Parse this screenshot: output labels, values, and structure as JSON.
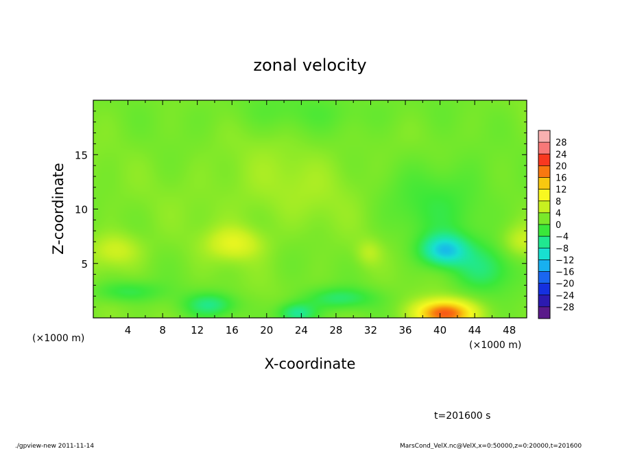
{
  "chart_data": {
    "type": "heatmap",
    "title": "zonal velocity",
    "xlabel": "X-coordinate",
    "ylabel": "Z-coordinate",
    "x_unit_label_left": "(×1000 m)",
    "x_unit_label_right": "(×1000 m)",
    "xlim": [
      0,
      50
    ],
    "ylim": [
      0,
      20
    ],
    "x_ticks": [
      4,
      8,
      12,
      16,
      20,
      24,
      28,
      32,
      36,
      40,
      44,
      48
    ],
    "x_tick_labels": [
      "4",
      "8",
      "12",
      "16",
      "20",
      "24",
      "28",
      "32",
      "36",
      "40",
      "44",
      "48"
    ],
    "y_ticks": [
      5,
      10,
      15
    ],
    "y_tick_labels": [
      "5",
      "10",
      "15"
    ],
    "colorbar": {
      "levels": [
        -28,
        -24,
        -20,
        -16,
        -12,
        -8,
        -4,
        0,
        4,
        8,
        12,
        16,
        20,
        24,
        28
      ],
      "labels": [
        "28",
        "24",
        "20",
        "16",
        "12",
        "8",
        "4",
        "0",
        "−4",
        "−8",
        "−12",
        "−16",
        "−20",
        "−24",
        "−28"
      ],
      "colors": [
        "#5a1a8a",
        "#2c1ab0",
        "#1530e0",
        "#1a66f0",
        "#18b0f0",
        "#18e0d0",
        "#20e890",
        "#3ae83a",
        "#7ae82a",
        "#c8f020",
        "#f8f820",
        "#f8c810",
        "#f87810",
        "#f83820",
        "#f87878",
        "#f8b0b0"
      ],
      "range": [
        -32,
        32
      ]
    },
    "field": {
      "background_value": 2,
      "features": [
        {
          "x": 40.5,
          "z": 6.2,
          "amp": -13,
          "sx": 2.6,
          "sz": 1.4
        },
        {
          "x": 40.5,
          "z": 0.4,
          "amp": 18,
          "sx": 3.2,
          "sz": 1.2
        },
        {
          "x": 16.3,
          "z": 6.8,
          "amp": 6,
          "sx": 3.2,
          "sz": 1.5
        },
        {
          "x": 2.6,
          "z": 6.2,
          "amp": 5,
          "sx": 3.0,
          "sz": 1.6
        },
        {
          "x": 31.8,
          "z": 6.0,
          "amp": 3,
          "sx": 1.5,
          "sz": 1.2
        },
        {
          "x": 49.5,
          "z": 7.0,
          "amp": 4,
          "sx": 2.4,
          "sz": 1.5
        },
        {
          "x": 23.5,
          "z": 0.4,
          "amp": -9,
          "sx": 2.2,
          "sz": 1.0
        },
        {
          "x": 13.5,
          "z": 1.2,
          "amp": -7,
          "sx": 3.0,
          "sz": 1.1
        },
        {
          "x": 28.5,
          "z": 1.8,
          "amp": -6,
          "sx": 4.0,
          "sz": 1.0
        },
        {
          "x": 4.0,
          "z": 2.4,
          "amp": -5,
          "sx": 4.0,
          "sz": 1.0
        },
        {
          "x": 45.0,
          "z": 4.5,
          "amp": -6,
          "sx": 3.5,
          "sz": 2.2
        },
        {
          "x": 40.0,
          "z": 10.5,
          "amp": -4,
          "sx": 6.0,
          "sz": 4.0
        },
        {
          "x": 22.0,
          "z": 12.0,
          "amp": 2,
          "sx": 10.0,
          "sz": 4.0
        },
        {
          "x": 25.0,
          "z": 19.0,
          "amp": -2,
          "sx": 12.0,
          "sz": 2.0
        }
      ]
    }
  },
  "time_label": "t=201600 s",
  "footer": {
    "left": "./gpview-new  2011-11-14",
    "right": "MarsCond_VelX.nc@VelX,x=0:50000,z=0:20000,t=201600"
  }
}
